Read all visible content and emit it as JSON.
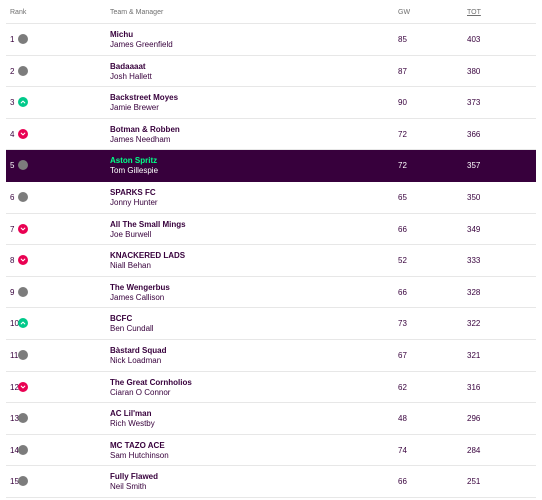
{
  "header": {
    "rank": "Rank",
    "team": "Team & Manager",
    "gw": "GW",
    "tot": "TOT"
  },
  "colors": {
    "accent": "#37003c",
    "up": "#00c98a",
    "down": "#e90052",
    "same": "#7c7c7c",
    "highlight_team": "#00ff87"
  },
  "rows": [
    {
      "rank": "1",
      "movement": "same",
      "team": "Michu",
      "manager": "James Greenfield",
      "gw": "85",
      "tot": "403"
    },
    {
      "rank": "2",
      "movement": "same",
      "team": "Badaaaat",
      "manager": "Josh Hallett",
      "gw": "87",
      "tot": "380"
    },
    {
      "rank": "3",
      "movement": "up",
      "team": "Backstreet Moyes",
      "manager": "Jamie Brewer",
      "gw": "90",
      "tot": "373"
    },
    {
      "rank": "4",
      "movement": "down",
      "team": "Botman & Robben",
      "manager": "James Needham",
      "gw": "72",
      "tot": "366"
    },
    {
      "rank": "5",
      "movement": "same",
      "team": "Aston Spritz",
      "manager": "Tom Gillespie",
      "gw": "72",
      "tot": "357",
      "highlight": true
    },
    {
      "rank": "6",
      "movement": "same",
      "team": "SPARKS FC",
      "manager": "Jonny Hunter",
      "gw": "65",
      "tot": "350"
    },
    {
      "rank": "7",
      "movement": "down",
      "team": "All The Small Mings",
      "manager": "Joe Burwell",
      "gw": "66",
      "tot": "349"
    },
    {
      "rank": "8",
      "movement": "down",
      "team": "KNACKERED LADS",
      "manager": "Niall Behan",
      "gw": "52",
      "tot": "333"
    },
    {
      "rank": "9",
      "movement": "same",
      "team": "The Wengerbus",
      "manager": "James Callison",
      "gw": "66",
      "tot": "328"
    },
    {
      "rank": "10",
      "movement": "up",
      "team": "BCFC",
      "manager": "Ben Cundall",
      "gw": "73",
      "tot": "322"
    },
    {
      "rank": "11",
      "movement": "same",
      "team": "Bàstard Squad",
      "manager": "Nick Loadman",
      "gw": "67",
      "tot": "321"
    },
    {
      "rank": "12",
      "movement": "down",
      "team": "The Great Cornholios",
      "manager": "Ciaran O Connor",
      "gw": "62",
      "tot": "316"
    },
    {
      "rank": "13",
      "movement": "same",
      "team": "AC Lil'man",
      "manager": "Rich Westby",
      "gw": "48",
      "tot": "296"
    },
    {
      "rank": "14",
      "movement": "same",
      "team": "MC TAZO ACE",
      "manager": "Sam Hutchinson",
      "gw": "74",
      "tot": "284"
    },
    {
      "rank": "15",
      "movement": "same",
      "team": "Fully Flawed",
      "manager": "Neil Smith",
      "gw": "66",
      "tot": "251"
    }
  ]
}
